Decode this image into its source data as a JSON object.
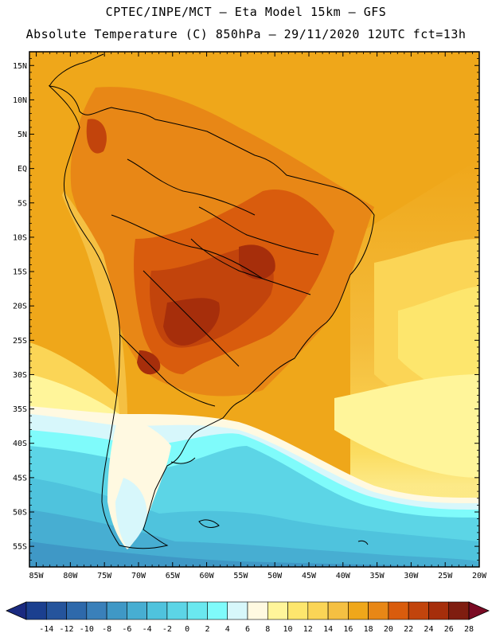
{
  "title": {
    "line1": "CPTEC/INPE/MCT –  Eta Model 15km – GFS",
    "line2": "Absolute Temperature (C) 850hPa – 29/11/2020 12UTC fct=13h"
  },
  "map": {
    "variable": "Absolute Temperature (C) 850hPa",
    "lat_labels": [
      "15N",
      "10N",
      "5N",
      "EQ",
      "5S",
      "10S",
      "15S",
      "20S",
      "25S",
      "30S",
      "35S",
      "40S",
      "45S",
      "50S",
      "55S"
    ],
    "lat_values": [
      15,
      10,
      5,
      0,
      -5,
      -10,
      -15,
      -20,
      -25,
      -30,
      -35,
      -40,
      -45,
      -50,
      -55
    ],
    "lon_labels": [
      "85W",
      "80W",
      "75W",
      "70W",
      "65W",
      "60W",
      "55W",
      "50W",
      "45W",
      "40W",
      "35W",
      "30W",
      "25W",
      "20W"
    ],
    "lon_values": [
      -85,
      -80,
      -75,
      -70,
      -65,
      -60,
      -55,
      -50,
      -45,
      -40,
      -35,
      -30,
      -25,
      -20
    ],
    "lat_range": [
      -58,
      17
    ],
    "lon_range": [
      -86,
      -20
    ]
  },
  "colorbar": {
    "labels": [
      "-14",
      "-12",
      "-10",
      "-8",
      "-6",
      "-4",
      "-2",
      "0",
      "2",
      "4",
      "6",
      "8",
      "10",
      "12",
      "14",
      "16",
      "18",
      "20",
      "22",
      "24",
      "26",
      "28"
    ],
    "colors": [
      "#1b3f8f",
      "#25549c",
      "#2e69ab",
      "#3a80ba",
      "#3f98c6",
      "#47aed2",
      "#4fc3dd",
      "#5cd5e6",
      "#6ae8ef",
      "#7ffbfb",
      "#d7f7fb",
      "#fff9e1",
      "#fff59a",
      "#fde66d",
      "#fbd556",
      "#f5c042",
      "#efa71a",
      "#e88716",
      "#d95c0d",
      "#c2440c",
      "#a62e0b",
      "#7f1d10"
    ],
    "under_color": "#1a2a80",
    "over_color": "#7a0a23"
  }
}
